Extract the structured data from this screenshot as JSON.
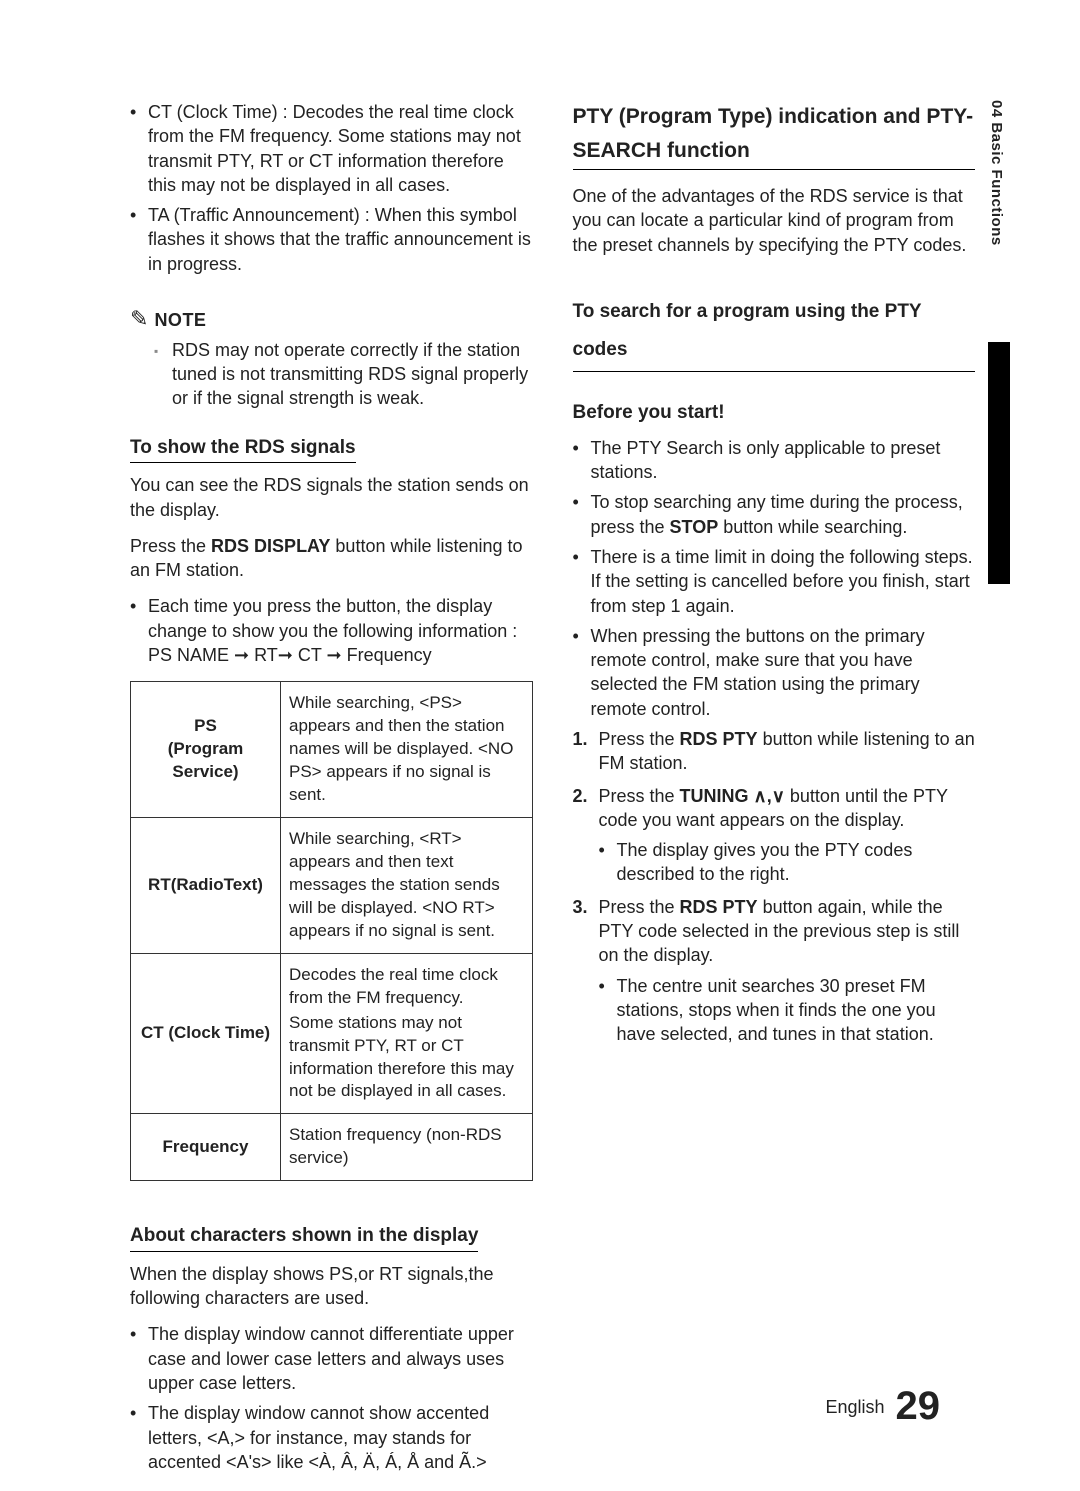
{
  "sidetab": "04  Basic Functions",
  "left": {
    "top_bullets": [
      "CT (Clock Time) : Decodes the real time clock from the FM frequency. Some stations may not transmit PTY, RT or CT information therefore this may not be displayed in all cases.",
      "TA (Traffic Announcement) :  When this symbol flashes it shows that the traffic announcement is in progress."
    ],
    "note_label": "NOTE",
    "note_body": "RDS may not operate correctly if the station tuned is not transmitting RDS signal properly or if the signal strength is weak.",
    "h_rds": "To show the RDS signals",
    "rds_p1": "You can see the RDS signals the station sends on the display.",
    "rds_p2_a": "Press the ",
    "rds_p2_b": "RDS DISPLAY",
    "rds_p2_c": " button while listening to an FM station.",
    "rds_bullet": "Each time you press the button, the display change to show you the following information : PS NAME ➞ RT➞ CT ➞ Frequency",
    "table": [
      {
        "label_a": "PS",
        "label_b": "(Program Service)",
        "desc": "While searching, <PS> appears and then the station names will be displayed. <NO PS> appears if no signal is sent."
      },
      {
        "label_a": "RT(RadioText)",
        "label_b": "",
        "desc": "While searching, <RT> appears and then text messages the station sends will be displayed. <NO RT> appears if no signal is sent."
      },
      {
        "label_a": "CT (Clock Time)",
        "label_b": "",
        "desc_a": "Decodes the real time clock from the FM frequency.",
        "desc_b": "Some stations may not transmit PTY, RT or CT information therefore this may not be displayed in all cases."
      },
      {
        "label_a": "Frequency",
        "label_b": "",
        "desc": "Station frequency (non-RDS service)"
      }
    ],
    "h_chars": "About characters shown in the display",
    "chars_p": "When the display shows PS,or RT signals,the following characters are used.",
    "chars_bullets": [
      "The display window cannot differentiate upper case and lower case letters and always uses upper case letters.",
      "The display window cannot show accented letters, <A,> for instance, may stands for accented <A's> like <À, Â, Ä, Á, Å and Ã.>"
    ]
  },
  "right": {
    "h_pty": "PTY (Program Type) indication and PTY-SEARCH function",
    "pty_p": "One of the advantages of the RDS service is that you can locate a particular kind of program from the preset channels by specifying the PTY codes.",
    "h_search": "To search for a program using the PTY codes",
    "before_label": "Before you start!",
    "before_bullets": [
      "The PTY Search is only applicable to preset stations.",
      {
        "pre": "To stop searching any time during the process, press the ",
        "bold": "STOP",
        "post": " button while searching."
      },
      "There is a time limit in doing the following steps. If the setting is cancelled before you finish, start from step 1 again.",
      "When pressing the buttons on the primary remote control, make sure that you have selected the FM station using the primary remote control."
    ],
    "steps": [
      {
        "pre": "Press the ",
        "bold": "RDS PTY",
        "post": " button while listening to an FM station."
      },
      {
        "pre": "Press the ",
        "bold": "TUNING ∧,∨",
        "post": " button until the PTY code you want appears on the display.",
        "sub": "The display gives you the PTY codes described to the right."
      },
      {
        "pre": "Press the ",
        "bold": "RDS PTY",
        "post": " button again, while the PTY code selected in the previous step is still on the display.",
        "sub": "The centre unit searches 30 preset FM stations, stops when it finds the one you have selected, and tunes in that station."
      }
    ]
  },
  "footer": {
    "lang": "English",
    "page": "29"
  }
}
